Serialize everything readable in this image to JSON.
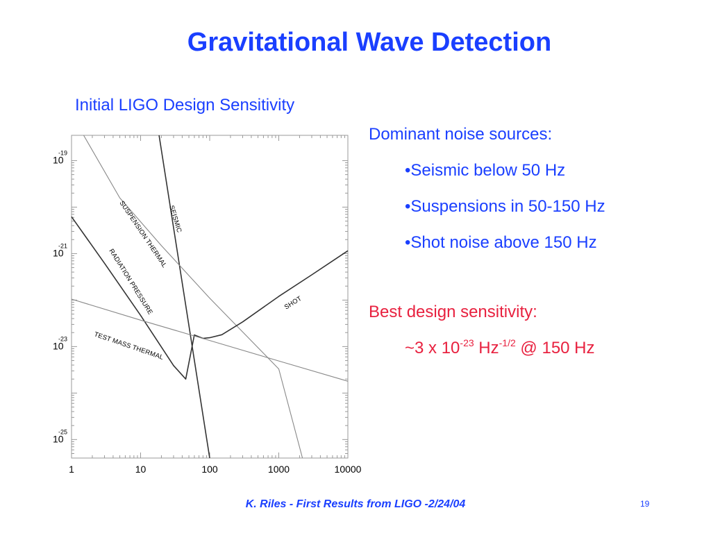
{
  "slide": {
    "title": "Gravitational Wave Detection",
    "subtitle": "Initial LIGO Design Sensitivity",
    "noise_heading": "Dominant noise sources:",
    "noise_bullets": [
      "•Seismic below 50 Hz",
      "•Suspensions in 50-150 Hz",
      "•Shot noise above 150 Hz"
    ],
    "best_heading": "Best design sensitivity:",
    "best_value": {
      "prefix": "~3 x 10",
      "exp1": "-23",
      "unit": " Hz",
      "exp2": "-1/2",
      "suffix": " @ 150 Hz"
    },
    "footer": "K. Riles - First Results from LIGO -2/24/04",
    "page_number": "19",
    "colors": {
      "title": "#1a3fff",
      "accent": "#e8213f",
      "curve_dark": "#333333",
      "curve_light": "#888888"
    }
  },
  "chart_data": {
    "type": "line",
    "xscale": "log",
    "yscale": "log",
    "xlim": [
      1,
      10000
    ],
    "ylim": [
      4e-26,
      3.5e-19
    ],
    "x_ticks": [
      "1",
      "10",
      "100",
      "1000",
      "10000"
    ],
    "y_ticks": [
      {
        "base": "10",
        "exp": "-19",
        "value": 1e-19
      },
      {
        "base": "10",
        "exp": "-21",
        "value": 1e-21
      },
      {
        "base": "10",
        "exp": "-23",
        "value": 1e-23
      },
      {
        "base": "10",
        "exp": "-25",
        "value": 1e-25
      }
    ],
    "series": [
      {
        "name": "SEISMIC",
        "style": "dark",
        "points": [
          [
            18.5,
            3.5e-19
          ],
          [
            100,
            4e-26
          ]
        ]
      },
      {
        "name": "SUSPENSION THERMAL",
        "style": "light",
        "points": [
          [
            1.5,
            3.5e-19
          ],
          [
            5,
            1.58e-20
          ],
          [
            20,
            1.48e-21
          ],
          [
            100,
            1.1e-22
          ],
          [
            1000,
            3.3e-24
          ],
          [
            2200,
            4e-26
          ]
        ]
      },
      {
        "name": "RADIATION PRESSURE",
        "style": "dark",
        "points": [
          [
            1,
            6.2e-21
          ],
          [
            3,
            6.2e-22
          ],
          [
            10,
            4.7e-23
          ],
          [
            30,
            3.9e-24
          ],
          [
            45,
            2e-24
          ],
          [
            60,
            1.78e-23
          ],
          [
            80,
            1.5e-23
          ],
          [
            100,
            1.55e-23
          ],
          [
            150,
            1.8e-23
          ],
          [
            300,
            3.4e-23
          ],
          [
            1000,
            1.2e-22
          ],
          [
            3000,
            3.5e-22
          ],
          [
            10000,
            1.15e-21
          ]
        ]
      },
      {
        "name": "SHOT",
        "style": "dark",
        "points": []
      },
      {
        "name": "TEST MASS THERMAL",
        "style": "light",
        "points": [
          [
            1,
            1.05e-22
          ],
          [
            10,
            3.7e-23
          ],
          [
            100,
            1.35e-23
          ],
          [
            1000,
            4.9e-24
          ],
          [
            10000,
            1.8e-24
          ]
        ]
      }
    ]
  }
}
